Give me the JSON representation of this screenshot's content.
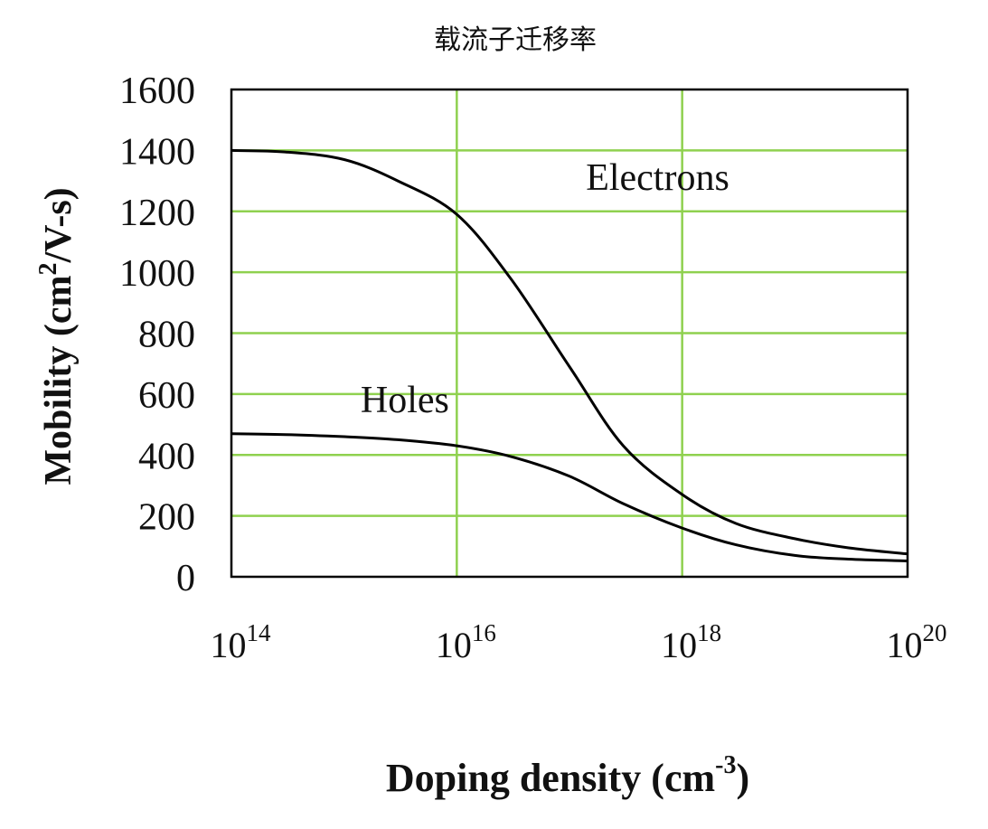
{
  "page_title": "载流子迁移率",
  "colors": {
    "grid": "#8fd14f",
    "axis": "#000000",
    "curve": "#000000",
    "text": "#111111",
    "background": "#ffffff"
  },
  "chart_data": {
    "type": "line",
    "title": "载流子迁移率",
    "xlabel": "Doping density (cm",
    "xlabel_exponent": "-3",
    "xlabel_suffix": ")",
    "ylabel": "Mobility (cm",
    "ylabel_exponent": "2",
    "ylabel_suffix": "/V-s)",
    "x_scale": "log10",
    "xlim": [
      100000000000000.0,
      1e+20
    ],
    "ylim": [
      0,
      1600
    ],
    "x_ticks": [
      {
        "value": 100000000000000.0,
        "base": "10",
        "exp": "14"
      },
      {
        "value": 1e+16,
        "base": "10",
        "exp": "16"
      },
      {
        "value": 1e+18,
        "base": "10",
        "exp": "18"
      },
      {
        "value": 1e+20,
        "base": "10",
        "exp": "20"
      }
    ],
    "y_ticks": [
      0,
      200,
      400,
      600,
      800,
      1000,
      1200,
      1400,
      1600
    ],
    "grid": true,
    "series": [
      {
        "name": "Electrons",
        "x": [
          100000000000000.0,
          300000000000000.0,
          1000000000000000.0,
          3000000000000000.0,
          1e+16,
          3e+16,
          1e+17,
          3e+17,
          1e+18,
          3e+18,
          1e+19,
          3e+19,
          1e+20
        ],
        "y": [
          1400,
          1395,
          1370,
          1300,
          1190,
          980,
          690,
          430,
          270,
          175,
          125,
          95,
          75
        ]
      },
      {
        "name": "Holes",
        "x": [
          100000000000000.0,
          300000000000000.0,
          1000000000000000.0,
          3000000000000000.0,
          1e+16,
          3e+16,
          1e+17,
          3e+17,
          1e+18,
          3e+18,
          1e+19,
          3e+19,
          1e+20
        ],
        "y": [
          470,
          467,
          460,
          450,
          430,
          395,
          330,
          240,
          160,
          105,
          70,
          58,
          52
        ]
      }
    ],
    "annotations": [
      {
        "text": "Electrons",
        "series": "Electrons",
        "x": 1.4e+17,
        "y": 1270
      },
      {
        "text": "Holes",
        "series": "Holes",
        "x": 1400000000000000.0,
        "y": 540
      }
    ]
  }
}
